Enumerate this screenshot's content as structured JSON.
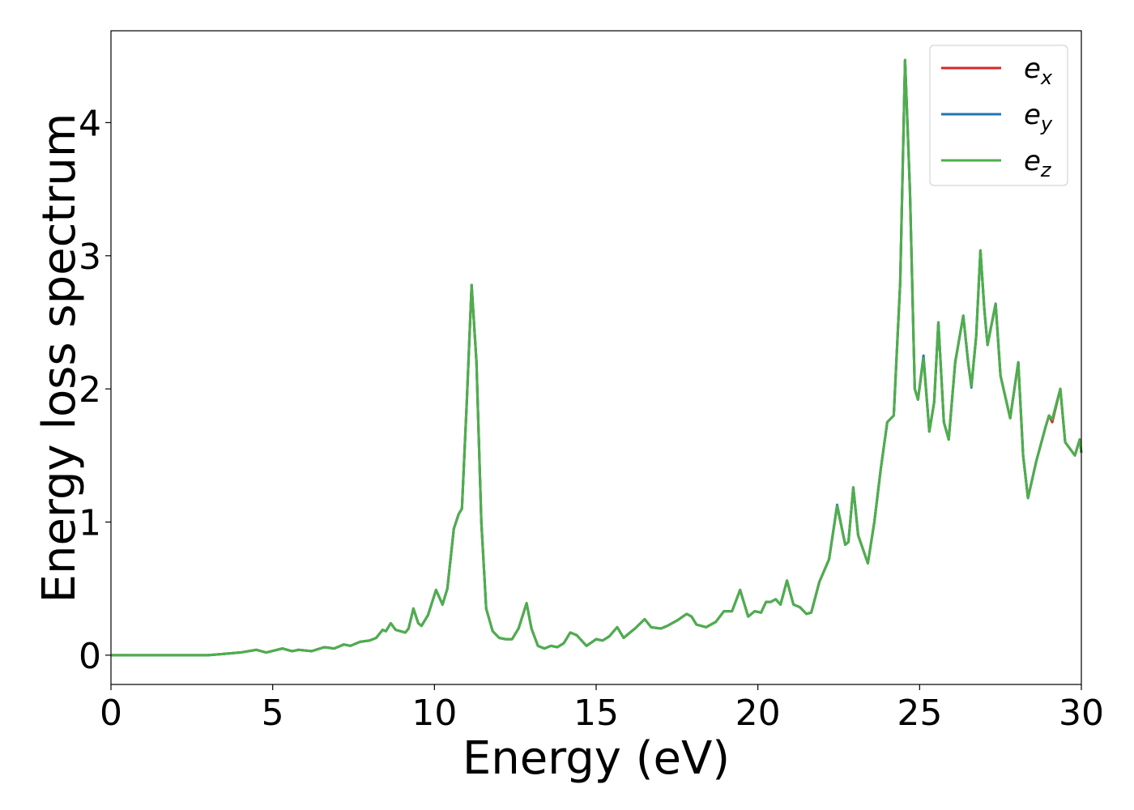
{
  "chart_data": {
    "type": "line",
    "xlabel": "Energy (eV)",
    "ylabel": "Energy loss spectrum",
    "x": [
      0,
      3,
      3.5,
      4,
      4.5,
      4.8,
      5.3,
      5.6,
      5.8,
      6.2,
      6.6,
      6.9,
      7.2,
      7.4,
      7.7,
      8.0,
      8.2,
      8.4,
      8.5,
      8.65,
      8.8,
      9.1,
      9.2,
      9.35,
      9.5,
      9.6,
      9.8,
      10.05,
      10.25,
      10.4,
      10.6,
      10.75,
      10.85,
      11.0,
      11.15,
      11.3,
      11.45,
      11.6,
      11.8,
      12.0,
      12.2,
      12.4,
      12.6,
      12.85,
      13.0,
      13.2,
      13.4,
      13.6,
      13.8,
      14.0,
      14.2,
      14.4,
      14.7,
      15.0,
      15.2,
      15.4,
      15.65,
      15.85,
      16.2,
      16.5,
      16.7,
      17.0,
      17.2,
      17.5,
      17.8,
      17.95,
      18.1,
      18.4,
      18.7,
      18.95,
      19.2,
      19.45,
      19.7,
      19.9,
      20.1,
      20.25,
      20.4,
      20.55,
      20.7,
      20.9,
      21.1,
      21.3,
      21.5,
      21.65,
      21.9,
      22.2,
      22.45,
      22.7,
      22.8,
      22.95,
      23.1,
      23.4,
      23.6,
      23.8,
      24.0,
      24.2,
      24.4,
      24.55,
      24.7,
      24.85,
      24.95,
      25.12,
      25.3,
      25.45,
      25.58,
      25.75,
      25.9,
      26.1,
      26.35,
      26.5,
      26.6,
      26.75,
      26.88,
      27.0,
      27.1,
      27.35,
      27.5,
      27.8,
      28.05,
      28.2,
      28.35,
      28.6,
      28.9,
      29.0,
      29.1,
      29.35,
      29.5,
      29.8,
      29.95,
      30
    ],
    "series": [
      {
        "name": "e_x",
        "color": "#d62728",
        "values": [
          0,
          0,
          0.01,
          0.02,
          0.04,
          0.02,
          0.05,
          0.03,
          0.04,
          0.03,
          0.06,
          0.05,
          0.08,
          0.07,
          0.1,
          0.11,
          0.13,
          0.19,
          0.18,
          0.24,
          0.19,
          0.17,
          0.2,
          0.35,
          0.24,
          0.22,
          0.3,
          0.49,
          0.38,
          0.5,
          0.95,
          1.06,
          1.1,
          1.9,
          2.78,
          2.2,
          1.0,
          0.35,
          0.18,
          0.13,
          0.12,
          0.12,
          0.2,
          0.39,
          0.2,
          0.07,
          0.05,
          0.07,
          0.06,
          0.09,
          0.17,
          0.15,
          0.07,
          0.12,
          0.11,
          0.14,
          0.21,
          0.13,
          0.2,
          0.27,
          0.21,
          0.2,
          0.22,
          0.26,
          0.31,
          0.29,
          0.23,
          0.21,
          0.25,
          0.33,
          0.33,
          0.49,
          0.29,
          0.33,
          0.32,
          0.4,
          0.4,
          0.42,
          0.38,
          0.56,
          0.38,
          0.36,
          0.31,
          0.32,
          0.55,
          0.72,
          1.12,
          0.83,
          0.85,
          1.26,
          0.9,
          0.69,
          1.0,
          1.4,
          1.75,
          1.8,
          2.8,
          4.47,
          3.5,
          2.0,
          1.92,
          2.23,
          1.68,
          1.9,
          2.5,
          1.75,
          1.62,
          2.2,
          2.55,
          2.2,
          2.02,
          2.4,
          3.04,
          2.6,
          2.33,
          2.64,
          2.1,
          1.78,
          2.2,
          1.5,
          1.18,
          1.45,
          1.72,
          1.8,
          1.75,
          2.0,
          1.6,
          1.5,
          1.62,
          1.52
        ]
      },
      {
        "name": "e_y",
        "color": "#1f77b4",
        "values": [
          0,
          0,
          0.01,
          0.02,
          0.04,
          0.02,
          0.05,
          0.03,
          0.04,
          0.03,
          0.06,
          0.05,
          0.08,
          0.07,
          0.1,
          0.11,
          0.13,
          0.19,
          0.18,
          0.24,
          0.19,
          0.17,
          0.2,
          0.35,
          0.24,
          0.22,
          0.3,
          0.49,
          0.38,
          0.5,
          0.95,
          1.06,
          1.1,
          1.9,
          2.78,
          2.2,
          1.0,
          0.35,
          0.18,
          0.13,
          0.12,
          0.12,
          0.2,
          0.39,
          0.2,
          0.07,
          0.05,
          0.07,
          0.06,
          0.09,
          0.17,
          0.15,
          0.07,
          0.12,
          0.11,
          0.14,
          0.21,
          0.13,
          0.2,
          0.27,
          0.21,
          0.2,
          0.22,
          0.26,
          0.31,
          0.29,
          0.23,
          0.21,
          0.25,
          0.33,
          0.33,
          0.49,
          0.29,
          0.33,
          0.32,
          0.4,
          0.4,
          0.42,
          0.38,
          0.56,
          0.38,
          0.36,
          0.31,
          0.32,
          0.55,
          0.72,
          1.13,
          0.83,
          0.85,
          1.26,
          0.9,
          0.69,
          1.0,
          1.4,
          1.75,
          1.8,
          2.8,
          4.47,
          3.5,
          2.0,
          1.92,
          2.25,
          1.68,
          1.9,
          2.5,
          1.75,
          1.62,
          2.2,
          2.55,
          2.2,
          2.01,
          2.4,
          3.04,
          2.6,
          2.33,
          2.64,
          2.1,
          1.78,
          2.2,
          1.5,
          1.18,
          1.45,
          1.72,
          1.8,
          1.77,
          2.0,
          1.6,
          1.5,
          1.62,
          1.52
        ]
      },
      {
        "name": "e_z",
        "color": "#4daf4a",
        "values": [
          0,
          0,
          0.01,
          0.02,
          0.04,
          0.02,
          0.05,
          0.03,
          0.04,
          0.03,
          0.06,
          0.05,
          0.08,
          0.07,
          0.1,
          0.11,
          0.13,
          0.19,
          0.18,
          0.24,
          0.19,
          0.17,
          0.2,
          0.35,
          0.24,
          0.22,
          0.3,
          0.49,
          0.38,
          0.5,
          0.95,
          1.06,
          1.1,
          1.9,
          2.78,
          2.2,
          1.0,
          0.35,
          0.18,
          0.13,
          0.12,
          0.12,
          0.2,
          0.39,
          0.2,
          0.07,
          0.05,
          0.07,
          0.06,
          0.09,
          0.17,
          0.15,
          0.07,
          0.12,
          0.11,
          0.14,
          0.21,
          0.13,
          0.2,
          0.27,
          0.21,
          0.2,
          0.22,
          0.26,
          0.31,
          0.29,
          0.23,
          0.21,
          0.25,
          0.33,
          0.33,
          0.49,
          0.29,
          0.33,
          0.32,
          0.4,
          0.4,
          0.42,
          0.38,
          0.56,
          0.38,
          0.36,
          0.31,
          0.32,
          0.55,
          0.72,
          1.12,
          0.83,
          0.85,
          1.26,
          0.9,
          0.69,
          1.0,
          1.4,
          1.75,
          1.8,
          2.8,
          4.47,
          3.5,
          2.0,
          1.92,
          2.23,
          1.68,
          1.9,
          2.5,
          1.75,
          1.62,
          2.2,
          2.55,
          2.2,
          2.02,
          2.4,
          3.04,
          2.6,
          2.33,
          2.64,
          2.1,
          1.78,
          2.2,
          1.5,
          1.18,
          1.45,
          1.72,
          1.8,
          1.77,
          2.0,
          1.6,
          1.5,
          1.62,
          1.52
        ]
      }
    ],
    "xlim": [
      0,
      30
    ],
    "xticks": [
      0,
      5,
      10,
      15,
      20,
      25,
      30
    ],
    "ylim": [
      -0.22,
      4.69
    ],
    "yticks": [
      0,
      1,
      2,
      3,
      4
    ],
    "grid": false,
    "legend": "upper right"
  }
}
